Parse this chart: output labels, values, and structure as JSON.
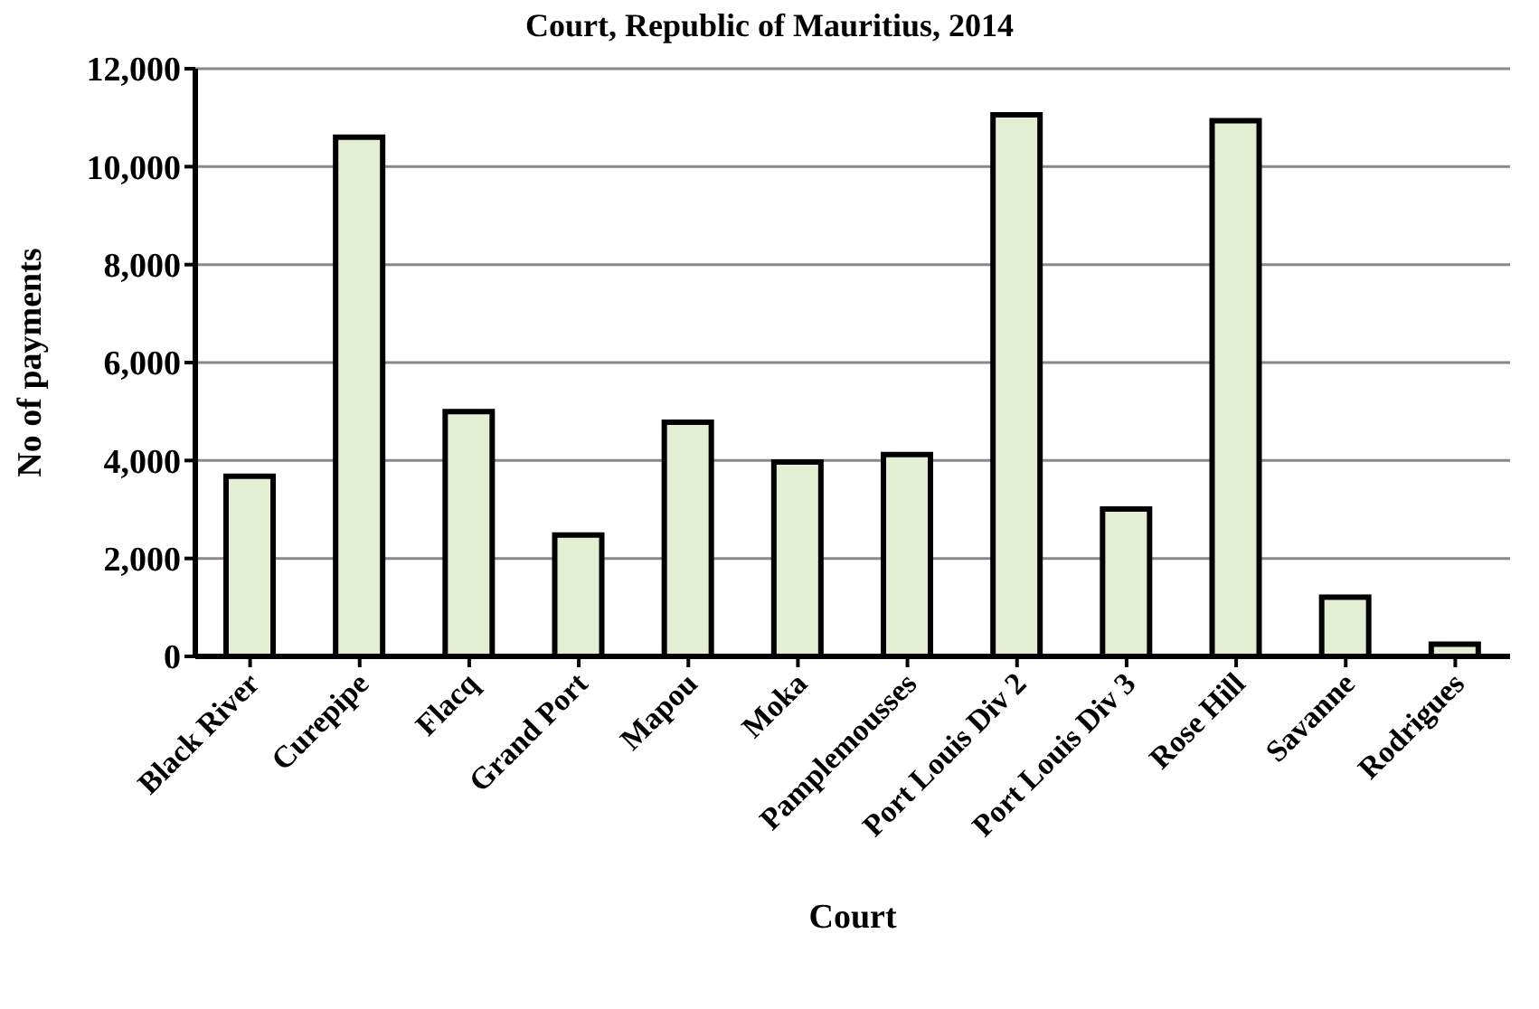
{
  "chart_data": {
    "type": "bar",
    "title": "Court, Republic of Mauritius, 2014",
    "xlabel": "Court",
    "ylabel": "No of payments",
    "categories": [
      "Black River",
      "Curepipe",
      "Flacq",
      "Grand Port",
      "Mapou",
      "Moka",
      "Pamplemousses",
      "Port Louis Div 2",
      "Port Louis Div 3",
      "Rose Hill",
      "Savanne",
      "Rodrigues"
    ],
    "values": [
      3680,
      10600,
      5000,
      2480,
      4780,
      3970,
      4120,
      11060,
      3010,
      10940,
      1210,
      250
    ],
    "color": "#e4eed3",
    "ylim": [
      0,
      12000
    ],
    "yticks": [
      0,
      {
        "value": 2000,
        "label": "2,000"
      },
      {
        "value": 4000,
        "label": "4,000"
      },
      {
        "value": 6000,
        "label": "6,000"
      },
      {
        "value": 8000,
        "label": "8,000"
      },
      {
        "value": 10000,
        "label": "10,000"
      },
      {
        "value": 12000,
        "label": "12,000"
      }
    ],
    "grid": "y"
  }
}
